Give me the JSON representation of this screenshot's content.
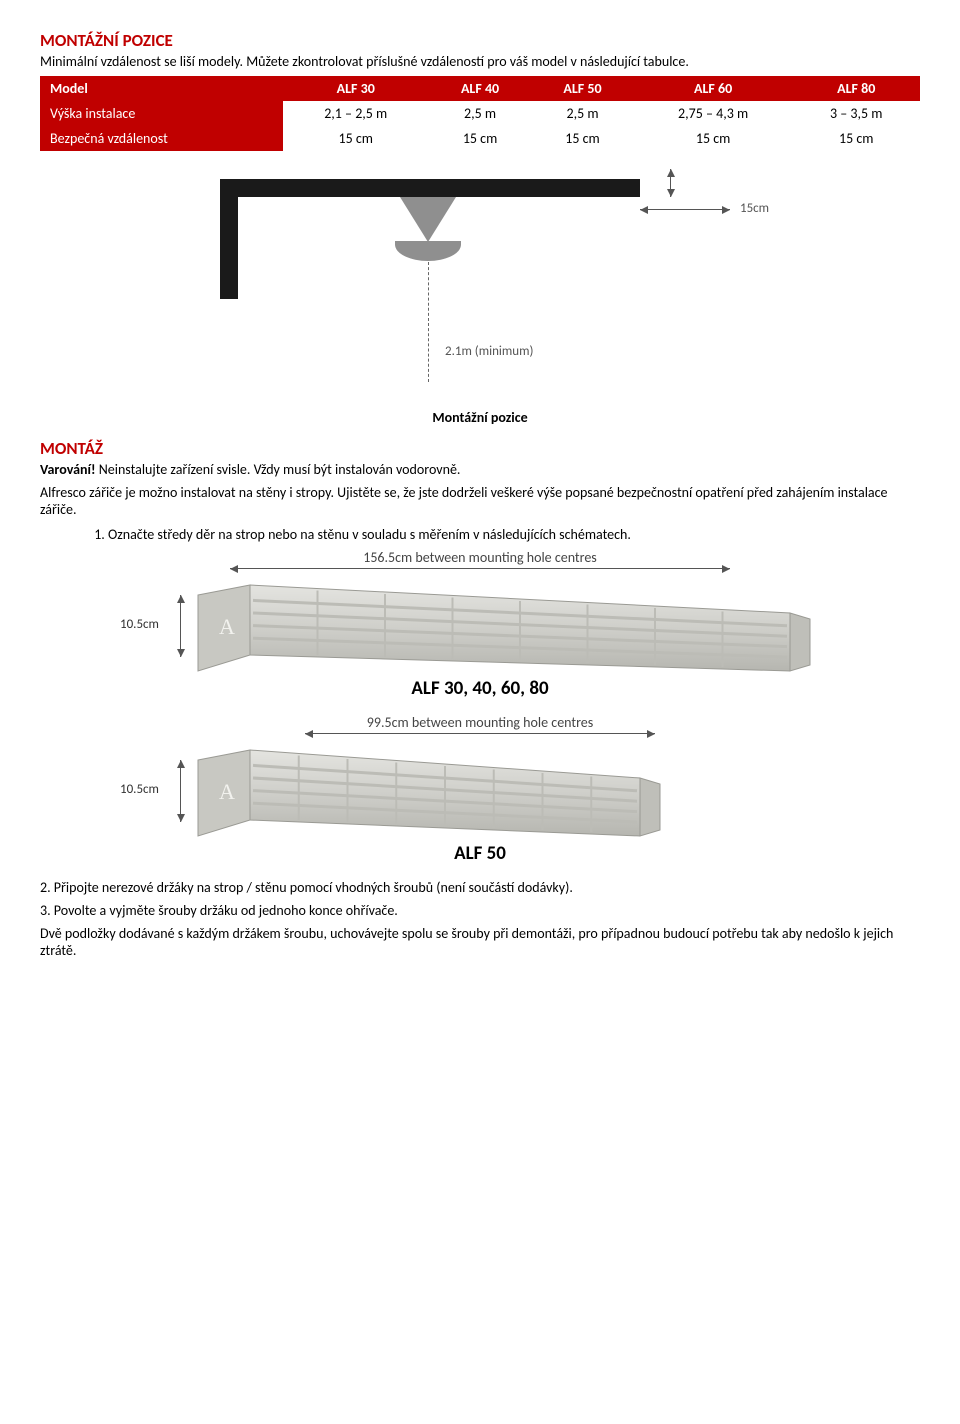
{
  "section1": {
    "title": "MONTÁŽNÍ POZICE",
    "intro": "Minimální vzdálenost se liší modely. Můžete zkontrolovat příslušné vzdáleností pro váš model v následující tabulce."
  },
  "table": {
    "headers": [
      "Model",
      "ALF 30",
      "ALF 40",
      "ALF 50",
      "ALF 60",
      "ALF 80"
    ],
    "rows": [
      {
        "label": "Výška instalace",
        "cells": [
          "2,1 – 2,5 m",
          "2,5 m",
          "2,5 m",
          "2,75 – 4,3 m",
          "3 – 3,5 m"
        ]
      },
      {
        "label": "Bezpečná vzdálenost",
        "cells": [
          "15 cm",
          "15 cm",
          "15 cm",
          "15 cm",
          "15 cm"
        ]
      }
    ]
  },
  "diagram1": {
    "side_clearance": "15cm",
    "min_height": "2.1m (minimum)",
    "caption": "Montážní pozice"
  },
  "section2": {
    "title": "MONTÁŽ",
    "warn_label": "Varování!",
    "warn_text": " Neinstalujte zařízení svisle. Vždy musí být instalován vodorovně.",
    "para2": "Alfresco zářiče je možno instalovat na stěny i stropy. Ujistěte se, že jste dodrželi veškeré výše popsané bezpečnostní opatření před zahájením instalace zářiče.",
    "step1": "Označte středy děr na strop nebo na stěnu v souladu s měřením v následujících schématech."
  },
  "products": [
    {
      "mount_label": "156.5cm between mounting hole centres",
      "arrow_width": 500,
      "body_width": 540,
      "height_label": "10.5cm",
      "caption": "ALF 30, 40, 60, 80"
    },
    {
      "mount_label": "99.5cm between mounting hole centres",
      "arrow_width": 350,
      "body_width": 390,
      "height_label": "10.5cm",
      "caption": "ALF 50"
    }
  ],
  "footer": {
    "l1": "2. Připojte nerezové držáky na strop / stěnu pomocí vhodných šroubů (není součástí dodávky).",
    "l2": "3. Povolte a vyjměte šrouby držáku od jednoho konce ohřívače.",
    "l3": "Dvě podložky dodávané s každým držákem šroubu, uchovávejte spolu se šrouby při demontáži, pro případnou budoucí potřebu tak aby nedošlo k jejich ztrátě."
  }
}
